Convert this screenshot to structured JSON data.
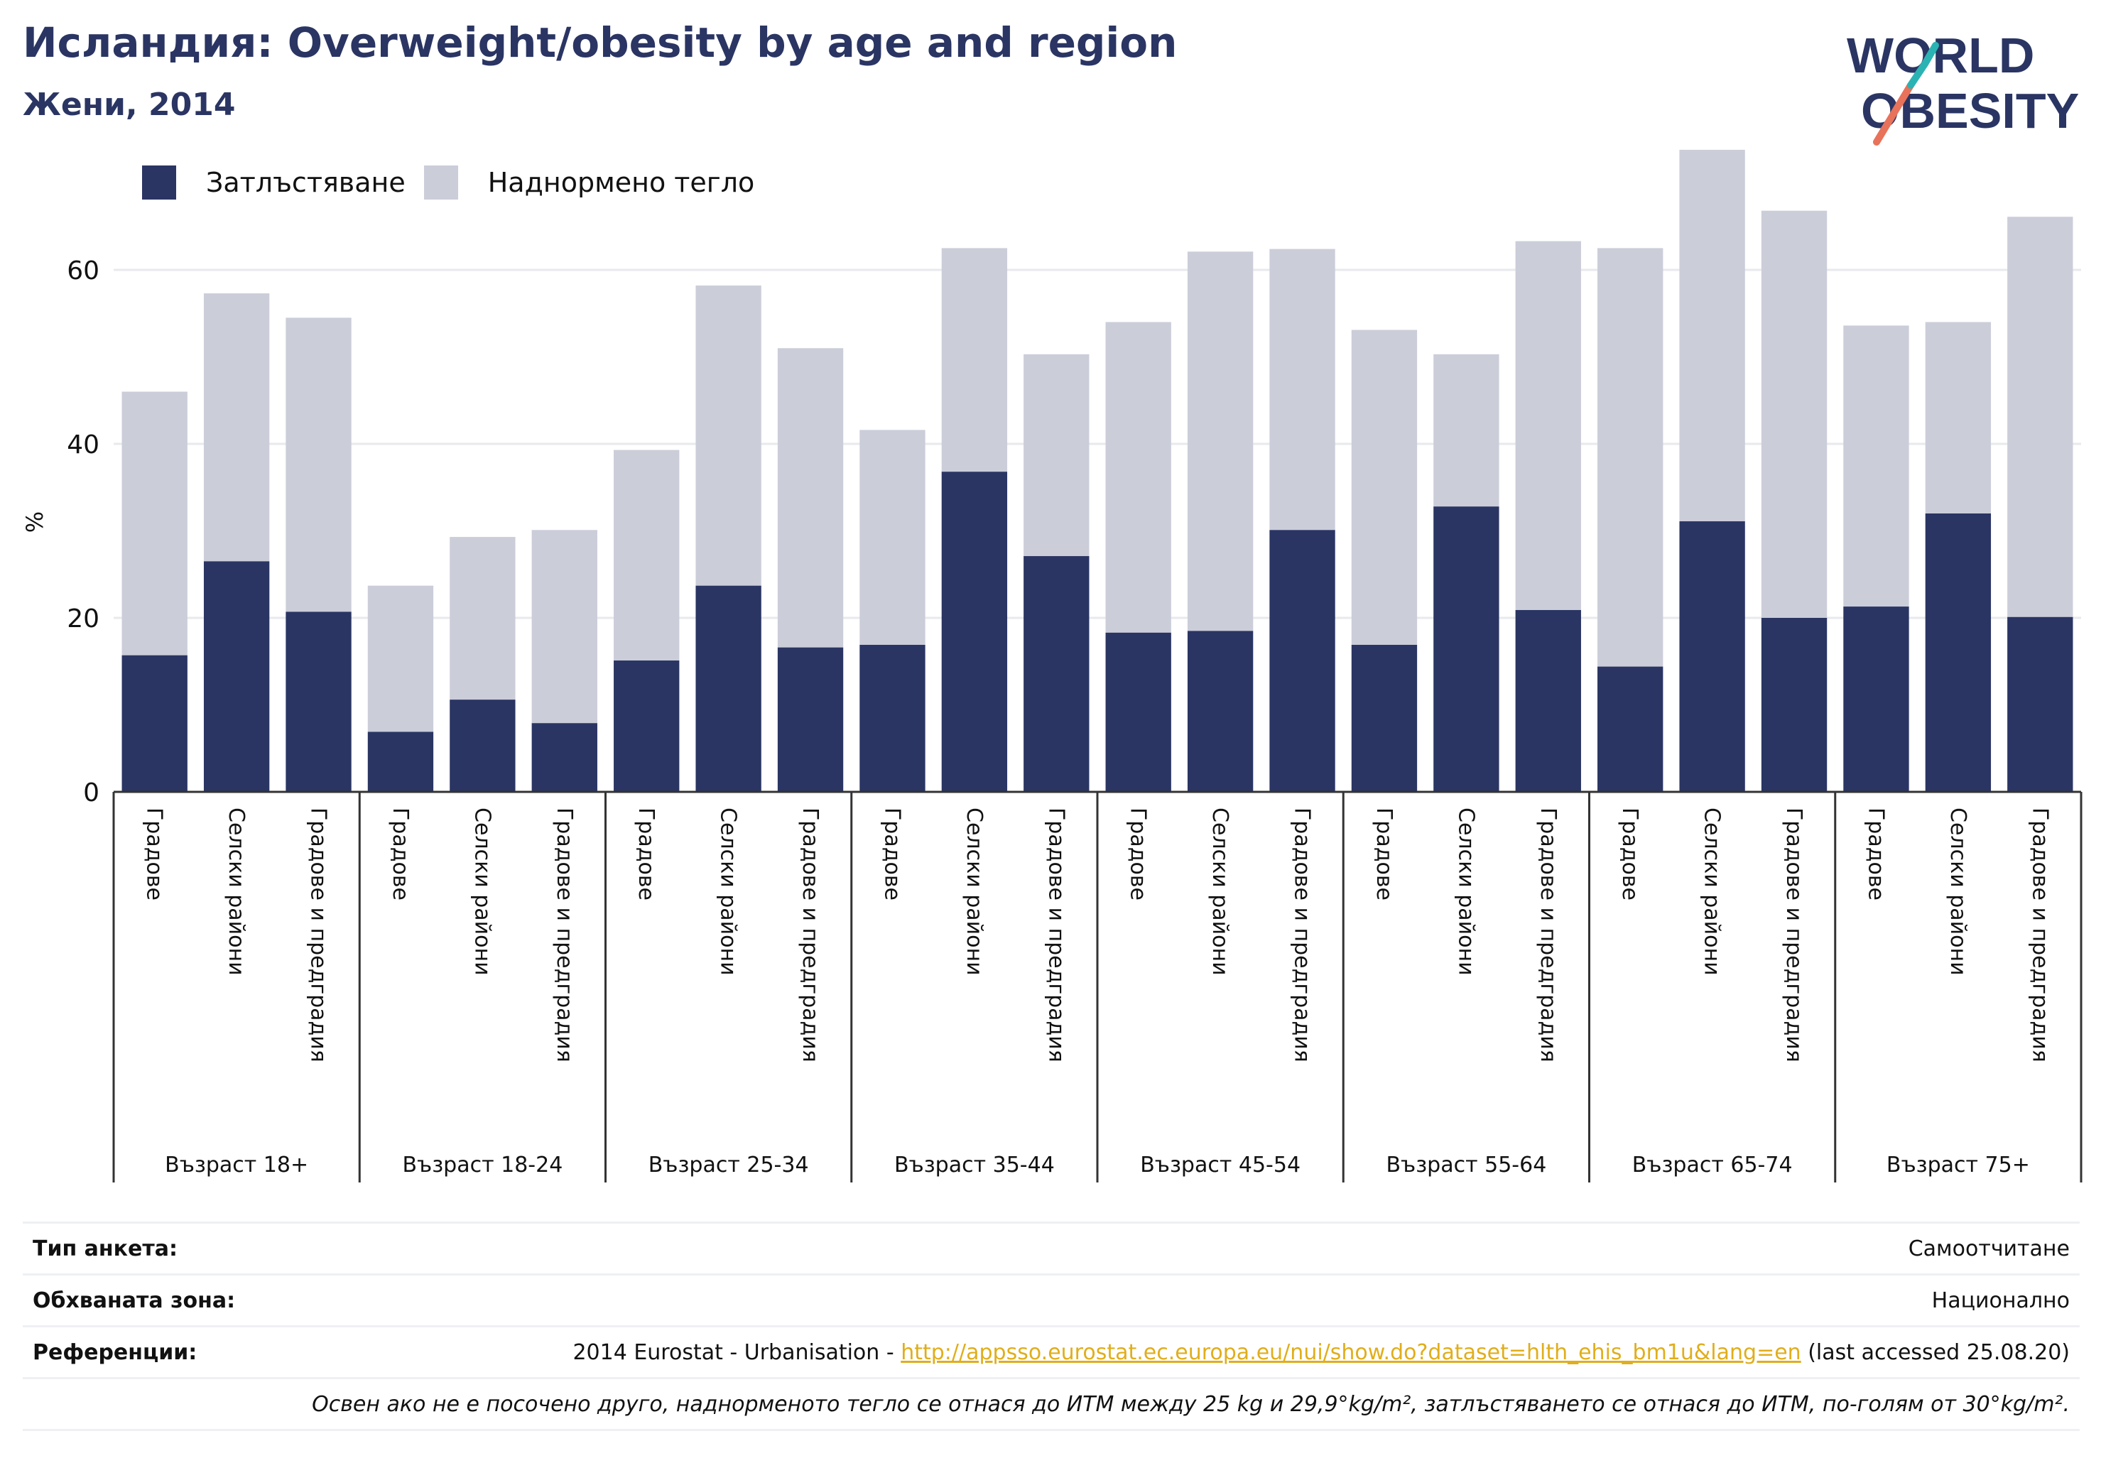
{
  "title": "Исландия: Overweight/obesity by age and region",
  "subtitle": "Жени, 2014",
  "logo": {
    "line1": "WORLD",
    "line2": "OBESITY"
  },
  "legend": {
    "obesity": "Затлъстяване",
    "overweight": "Наднормено тегло"
  },
  "colors": {
    "obesity": "#2a3563",
    "overweight": "#cbcdd9",
    "grid": "#e8e9ee",
    "axis": "#333333",
    "link": "#e0ae1c"
  },
  "chart_data": {
    "type": "bar",
    "stacked": true,
    "ylabel": "%",
    "ylim": [
      0,
      80
    ],
    "yticks": [
      0,
      20,
      40,
      60
    ],
    "grid": true,
    "legend_position": "top-left",
    "groups": [
      {
        "label": "Възраст 18+",
        "obesity": [
          15.7,
          26.5,
          20.7
        ],
        "overweight": [
          30.3,
          30.8,
          33.8
        ]
      },
      {
        "label": "Възраст 18-24",
        "obesity": [
          6.9,
          10.6,
          7.9
        ],
        "overweight": [
          16.8,
          18.7,
          22.2
        ]
      },
      {
        "label": "Възраст 25-34",
        "obesity": [
          15.1,
          23.7,
          16.6
        ],
        "overweight": [
          24.2,
          34.5,
          34.4
        ]
      },
      {
        "label": "Възраст 35-44",
        "obesity": [
          16.9,
          36.8,
          27.1
        ],
        "overweight": [
          24.7,
          25.7,
          23.2
        ]
      },
      {
        "label": "Възраст 45-54",
        "obesity": [
          18.3,
          18.5,
          30.1
        ],
        "overweight": [
          35.7,
          43.6,
          32.3
        ]
      },
      {
        "label": "Възраст 55-64",
        "obesity": [
          16.9,
          32.8,
          20.9
        ],
        "overweight": [
          36.2,
          17.5,
          42.4
        ]
      },
      {
        "label": "Възраст 65-74",
        "obesity": [
          14.4,
          31.1,
          20.0
        ],
        "overweight": [
          48.1,
          42.7,
          46.8
        ]
      },
      {
        "label": "Възраст 75+",
        "obesity": [
          21.3,
          32.0,
          20.1
        ],
        "overweight": [
          32.3,
          22.0,
          46.0
        ]
      }
    ],
    "subcategories": [
      "Градове",
      "Селски райони",
      "Градове и предградия"
    ]
  },
  "footer": {
    "survey_label": "Тип анкета:",
    "survey_value": "Самоотчитане",
    "area_label": "Обхваната зона:",
    "area_value": "Национално",
    "ref_label": "Референции:",
    "ref_prefix": "2014 Eurostat - Urbanisation - ",
    "ref_link": "http://appsso.eurostat.ec.europa.eu/nui/show.do?dataset=hlth_ehis_bm1u&lang=en",
    "ref_suffix": " (last accessed 25.08.20)",
    "note": "Освен ако не е посочено друго, наднорменото тегло се отнася до ИТМ между 25 kg и 29,9°kg/m², затлъстяването се отнася до ИТМ, по-голям от 30°kg/m²."
  }
}
